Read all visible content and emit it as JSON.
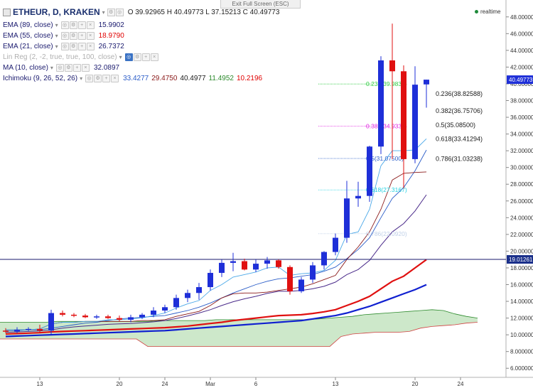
{
  "header": {
    "exit_fullscreen": "Exit Full Screen (ESC)",
    "symbol": "ETHEUR, D, KRAKEN",
    "ohlc": "O 39.92965 H 40.49773 L 37.15213 C 40.49773",
    "realtime": "realtime"
  },
  "legend": [
    {
      "name": "EMA (89, close)",
      "values": [
        {
          "v": "15.9902",
          "color": "#1a1a6e"
        }
      ],
      "color": "#1a1a6e"
    },
    {
      "name": "EMA (55, close)",
      "values": [
        {
          "v": "18.9790",
          "color": "#e00000"
        }
      ],
      "color": "#1a1a6e"
    },
    {
      "name": "EMA (21, close)",
      "values": [
        {
          "v": "26.7372",
          "color": "#1a1a6e"
        }
      ],
      "color": "#1a1a6e"
    },
    {
      "name": "Lin Reg (2, -2, true, true, 100, close)",
      "values": [],
      "color": "#b0b0b0",
      "active_eye": true
    },
    {
      "name": "MA (10, close)",
      "values": [
        {
          "v": "32.0897",
          "color": "#1a1a6e"
        }
      ],
      "color": "#1a1a6e"
    },
    {
      "name": "Ichimoku (9, 26, 52, 26)",
      "values": [
        {
          "v": "33.4277",
          "color": "#2a5cc8"
        },
        {
          "v": "29.4750",
          "color": "#8b1a1a"
        },
        {
          "v": "40.4977",
          "color": "#1a1a1a"
        },
        {
          "v": "11.4952",
          "color": "#2e8b2e"
        },
        {
          "v": "10.2196",
          "color": "#e00000"
        }
      ],
      "color": "#1a1a6e"
    }
  ],
  "chart_data": {
    "type": "candlestick",
    "ylim": [
      5,
      49
    ],
    "y_ticks": [
      "6.000000",
      "8.000000",
      "10.000000",
      "12.000000",
      "14.000000",
      "16.000000",
      "18.000000",
      "20.000000",
      "22.000000",
      "24.000000",
      "26.000000",
      "28.000000",
      "30.000000",
      "32.000000",
      "34.000000",
      "36.000000",
      "38.000000",
      "40.000000",
      "42.000000",
      "44.000000",
      "46.000000",
      "48.000000"
    ],
    "y_tick_values": [
      6,
      8,
      10,
      12,
      14,
      16,
      18,
      20,
      22,
      24,
      26,
      28,
      30,
      32,
      34,
      36,
      38,
      40,
      42,
      44,
      46,
      48
    ],
    "x_ticks": [
      "13",
      "20",
      "24",
      "Mar",
      "6",
      "13",
      "20",
      "24"
    ],
    "x_tick_bars": [
      3,
      10,
      14,
      18,
      22,
      29,
      36,
      40
    ],
    "bar_count": 41,
    "candles": [
      {
        "o": 10.5,
        "h": 10.8,
        "l": 10.2,
        "c": 10.4
      },
      {
        "o": 10.4,
        "h": 10.9,
        "l": 10.2,
        "c": 10.6
      },
      {
        "o": 10.6,
        "h": 10.9,
        "l": 10.4,
        "c": 10.7
      },
      {
        "o": 10.7,
        "h": 11.2,
        "l": 10.3,
        "c": 10.5
      },
      {
        "o": 10.5,
        "h": 13.0,
        "l": 10.1,
        "c": 12.6
      },
      {
        "o": 12.6,
        "h": 12.9,
        "l": 12.2,
        "c": 12.4
      },
      {
        "o": 12.4,
        "h": 12.6,
        "l": 12.1,
        "c": 12.3
      },
      {
        "o": 12.3,
        "h": 12.5,
        "l": 12.0,
        "c": 12.1
      },
      {
        "o": 12.1,
        "h": 12.4,
        "l": 11.9,
        "c": 12.2
      },
      {
        "o": 12.2,
        "h": 12.4,
        "l": 11.9,
        "c": 12.0
      },
      {
        "o": 12.0,
        "h": 12.3,
        "l": 11.6,
        "c": 11.8
      },
      {
        "o": 11.8,
        "h": 12.4,
        "l": 11.5,
        "c": 12.1
      },
      {
        "o": 12.1,
        "h": 12.6,
        "l": 11.9,
        "c": 12.4
      },
      {
        "o": 12.4,
        "h": 13.3,
        "l": 12.1,
        "c": 12.9
      },
      {
        "o": 12.9,
        "h": 13.6,
        "l": 12.6,
        "c": 13.3
      },
      {
        "o": 13.3,
        "h": 14.8,
        "l": 13.0,
        "c": 14.4
      },
      {
        "o": 14.4,
        "h": 15.4,
        "l": 13.9,
        "c": 15.0
      },
      {
        "o": 15.0,
        "h": 16.2,
        "l": 14.2,
        "c": 15.7
      },
      {
        "o": 15.7,
        "h": 17.8,
        "l": 15.3,
        "c": 17.4
      },
      {
        "o": 17.4,
        "h": 19.0,
        "l": 16.9,
        "c": 18.6
      },
      {
        "o": 18.6,
        "h": 19.8,
        "l": 17.6,
        "c": 18.8
      },
      {
        "o": 18.8,
        "h": 19.1,
        "l": 17.7,
        "c": 17.8
      },
      {
        "o": 17.8,
        "h": 19.0,
        "l": 17.5,
        "c": 18.5
      },
      {
        "o": 18.5,
        "h": 19.3,
        "l": 17.9,
        "c": 18.9
      },
      {
        "o": 18.9,
        "h": 19.0,
        "l": 17.9,
        "c": 18.1
      },
      {
        "o": 18.1,
        "h": 18.3,
        "l": 14.8,
        "c": 15.2
      },
      {
        "o": 15.2,
        "h": 16.9,
        "l": 15.0,
        "c": 16.6
      },
      {
        "o": 16.6,
        "h": 18.7,
        "l": 16.2,
        "c": 18.3
      },
      {
        "o": 18.3,
        "h": 20.0,
        "l": 17.8,
        "c": 19.9
      },
      {
        "o": 19.9,
        "h": 22.1,
        "l": 19.5,
        "c": 21.6
      },
      {
        "o": 21.6,
        "h": 28.4,
        "l": 21.0,
        "c": 26.3
      },
      {
        "o": 26.3,
        "h": 28.3,
        "l": 25.3,
        "c": 26.6
      },
      {
        "o": 26.6,
        "h": 32.6,
        "l": 25.9,
        "c": 32.5
      },
      {
        "o": 32.5,
        "h": 43.3,
        "l": 31.6,
        "c": 42.8
      },
      {
        "o": 42.8,
        "h": 47.2,
        "l": 31.0,
        "c": 41.5
      },
      {
        "o": 41.5,
        "h": 42.2,
        "l": 27.5,
        "c": 31.0
      },
      {
        "o": 31.0,
        "h": 42.1,
        "l": 30.5,
        "c": 39.9
      },
      {
        "o": 39.92965,
        "h": 40.49773,
        "l": 37.15213,
        "c": 40.49773
      }
    ],
    "candle_bars_start": 0,
    "ema89": [
      9.8,
      9.85,
      9.9,
      9.95,
      10.0,
      10.05,
      10.1,
      10.15,
      10.2,
      10.25,
      10.3,
      10.35,
      10.4,
      10.45,
      10.5,
      10.6,
      10.7,
      10.8,
      10.9,
      11.0,
      11.1,
      11.2,
      11.3,
      11.4,
      11.5,
      11.6,
      11.7,
      11.9,
      12.1,
      12.3,
      12.6,
      13.0,
      13.4,
      13.9,
      14.4,
      14.9,
      15.4,
      15.99
    ],
    "ema55": [
      10.1,
      10.15,
      10.2,
      10.25,
      10.35,
      10.4,
      10.45,
      10.5,
      10.55,
      10.6,
      10.65,
      10.7,
      10.75,
      10.8,
      10.85,
      10.95,
      11.05,
      11.2,
      11.35,
      11.5,
      11.7,
      11.85,
      12.0,
      12.15,
      12.3,
      12.35,
      12.4,
      12.55,
      12.75,
      13.0,
      13.5,
      14.0,
      14.6,
      15.5,
      16.4,
      17.0,
      18.0,
      18.98
    ],
    "tenkan": [
      10.6,
      10.6,
      10.6,
      10.7,
      11.3,
      11.5,
      11.5,
      11.6,
      11.6,
      11.8,
      11.8,
      11.9,
      12.0,
      12.3,
      12.6,
      13.2,
      13.7,
      14.1,
      15.3,
      16.0,
      16.9,
      17.2,
      17.5,
      18.0,
      18.1,
      17.1,
      17.3,
      17.4,
      17.7,
      18.9,
      22.0,
      22.3,
      25.0,
      30.2,
      32.0,
      32.0,
      32.1,
      33.43
    ],
    "kijun": [
      10.6,
      10.6,
      10.6,
      10.7,
      11.3,
      11.5,
      11.5,
      11.6,
      11.6,
      11.6,
      11.6,
      11.6,
      11.7,
      11.7,
      11.8,
      12.2,
      12.5,
      12.8,
      13.5,
      14.4,
      14.9,
      15.0,
      15.0,
      15.1,
      15.3,
      15.5,
      15.7,
      16.1,
      16.6,
      17.1,
      19.0,
      20.5,
      22.3,
      25.0,
      28.5,
      29.3,
      29.4,
      29.475
    ],
    "ma10": [
      10.5,
      10.5,
      10.6,
      10.6,
      10.8,
      11.0,
      11.2,
      11.4,
      11.5,
      11.7,
      11.9,
      12.0,
      12.1,
      12.2,
      12.3,
      12.6,
      12.9,
      13.3,
      13.8,
      14.4,
      15.0,
      15.5,
      16.0,
      16.4,
      16.7,
      16.8,
      17.0,
      17.2,
      17.6,
      18.1,
      19.1,
      20.2,
      21.6,
      24.0,
      26.3,
      27.6,
      29.6,
      32.09
    ],
    "ema21": [
      10.3,
      10.35,
      10.4,
      10.45,
      10.6,
      10.8,
      10.95,
      11.05,
      11.15,
      11.25,
      11.3,
      11.35,
      11.45,
      11.55,
      11.7,
      11.95,
      12.25,
      12.6,
      13.0,
      13.5,
      13.95,
      14.3,
      14.6,
      14.95,
      15.2,
      15.2,
      15.3,
      15.5,
      15.8,
      16.3,
      17.2,
      17.8,
      18.9,
      20.7,
      22.3,
      23.3,
      24.8,
      26.74
    ],
    "spanA": [
      11.5,
      11.5,
      11.5,
      11.5,
      11.5,
      11.6,
      11.6,
      11.6,
      11.6,
      11.6,
      11.6,
      11.6,
      11.6,
      11.6,
      11.7,
      11.7,
      11.7,
      11.7,
      11.7,
      11.8,
      11.8,
      11.8,
      11.8,
      11.8,
      11.8,
      11.8,
      11.8,
      11.8,
      11.9,
      12.0,
      12.1,
      12.2,
      12.4,
      12.5,
      12.6,
      12.7,
      12.8,
      12.9,
      13.0,
      12.9,
      12.5,
      12.2,
      12.0
    ],
    "spanB": [
      9.5,
      9.5,
      9.5,
      9.5,
      9.5,
      9.5,
      9.5,
      9.5,
      9.5,
      9.5,
      9.5,
      9.5,
      9.5,
      8.6,
      8.6,
      8.6,
      8.6,
      8.6,
      8.6,
      8.6,
      8.6,
      8.6,
      8.6,
      8.6,
      8.6,
      8.6,
      8.6,
      8.6,
      8.6,
      8.6,
      9.8,
      10.1,
      10.2,
      10.3,
      10.3,
      10.3,
      10.4,
      10.8,
      11.0,
      11.1,
      11.2,
      11.4,
      11.5
    ],
    "spanA_line": [
      10.3,
      10.3,
      10.3,
      10.4,
      10.5,
      10.6,
      10.7,
      10.8,
      10.9,
      11.0,
      11.0,
      11.1,
      11.2,
      11.3,
      11.4,
      11.5,
      11.6,
      11.7,
      11.8,
      11.9,
      12.0,
      12.1,
      12.2,
      12.3,
      12.4,
      12.5,
      12.5,
      12.5,
      12.6,
      12.7,
      12.8,
      12.9,
      13.0,
      13.1,
      13.2,
      13.3,
      13.4,
      13.5,
      13.6,
      12.9,
      12.5
    ],
    "current_price_label": "40.49773",
    "horizontal_line_label": "19.01261",
    "horizontal_line_value": 19.01261,
    "fib_levels": [
      {
        "label": "0.236(39.9834)",
        "value": 39.98,
        "color": "#2ecc40",
        "side": "left"
      },
      {
        "label": "0.382(34.9330)",
        "value": 34.93,
        "color": "#e020e0",
        "side": "left"
      },
      {
        "label": "0.5(31.07500)",
        "value": 31.08,
        "color": "#2a5cc8",
        "side": "left"
      },
      {
        "label": "0.618(27.3167)",
        "value": 27.32,
        "color": "#20d0e0",
        "side": "left"
      },
      {
        "label": "0.786(22.0920)",
        "value": 22.09,
        "color": "#c0d0e8",
        "side": "left"
      }
    ],
    "fib_right": [
      {
        "label": "0.236(38.82588)",
        "value": 38.82588
      },
      {
        "label": "0.382(36.75706)",
        "value": 36.75706
      },
      {
        "label": "0.5(35.08500)",
        "value": 35.085
      },
      {
        "label": "0.618(33.41294)",
        "value": 33.41294
      },
      {
        "label": "0.786(31.03238)",
        "value": 31.03238
      }
    ]
  }
}
